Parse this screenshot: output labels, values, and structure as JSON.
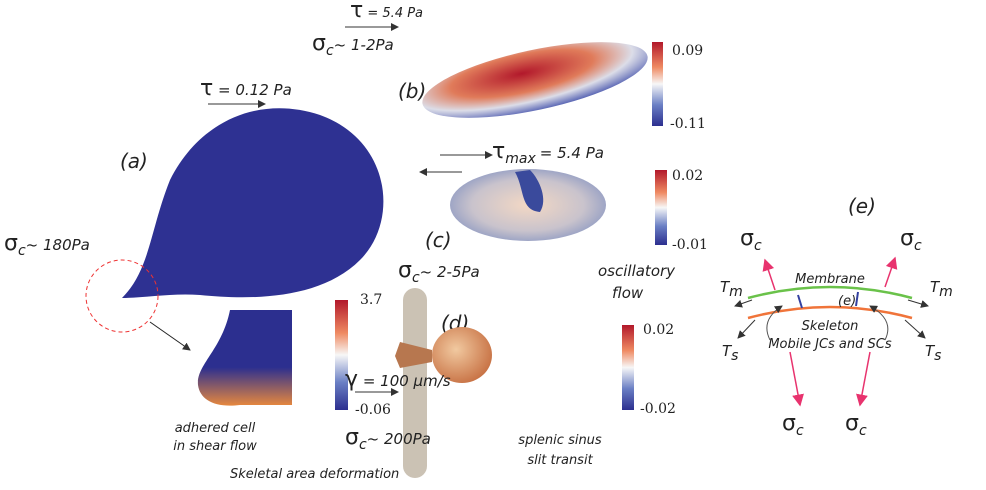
{
  "panels": [
    {
      "label": "(a)",
      "stress": {
        "symbol": "τ",
        "value": "= 0.12 Pa"
      },
      "sigma": {
        "symbol": "σ",
        "sub": "c",
        "value": "~ 180Pa"
      },
      "colorbar": {
        "max": "3.7",
        "min": "-0.06"
      },
      "caption": [
        "adhered cell",
        "in shear flow"
      ]
    },
    {
      "label": "(b)",
      "stress": {
        "symbol": "τ",
        "value": "= 5.4 Pa"
      },
      "sigma": {
        "symbol": "σ",
        "sub": "c",
        "value": "~ 1-2Pa"
      },
      "colorbar": {
        "max": "0.09",
        "min": "-0.11"
      }
    },
    {
      "label": "(c)",
      "stress": {
        "symbol": "τ",
        "sub": "max",
        "value": "= 5.4 Pa"
      },
      "sigma": {
        "symbol": "σ",
        "sub": "c",
        "value": "~ 2-5Pa"
      },
      "colorbar": {
        "max": "0.02",
        "min": "-0.01"
      },
      "caption": [
        "oscillatory",
        "flow"
      ]
    },
    {
      "label": "(d)",
      "stress": {
        "symbol": "γ",
        "value": "= 100 μm/s"
      },
      "sigma": {
        "symbol": "σ",
        "sub": "c",
        "value": "~ 200Pa"
      },
      "colorbar": {
        "max": "0.02",
        "min": "-0.02"
      },
      "caption": [
        "splenic sinus",
        "slit transit"
      ]
    },
    {
      "label": "(e)",
      "inner_label": "(e)",
      "membrane": "Membrane",
      "skeleton": "Skeleton",
      "mobile": "Mobile JCs and SCs",
      "forces": [
        {
          "symbol": "σ",
          "sub": "c"
        },
        {
          "symbol": "σ",
          "sub": "c"
        },
        {
          "symbol": "σ",
          "sub": "c"
        },
        {
          "symbol": "σ",
          "sub": "c"
        },
        {
          "symbol": "T",
          "sub": "m"
        },
        {
          "symbol": "T",
          "sub": "m"
        },
        {
          "symbol": "T",
          "sub": "s"
        },
        {
          "symbol": "T",
          "sub": "s"
        }
      ]
    }
  ],
  "footer": "Skeletal area deformation"
}
